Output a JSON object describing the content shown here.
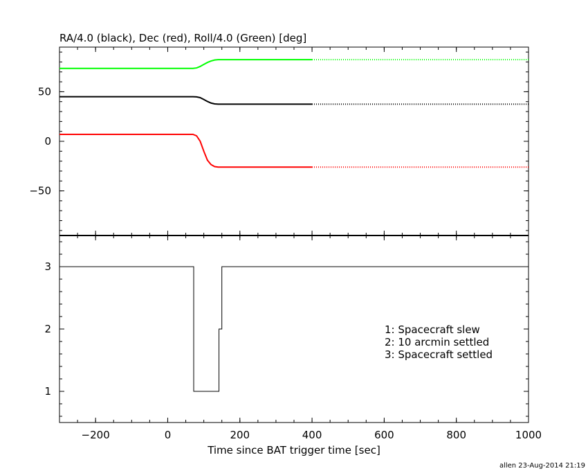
{
  "footer": "allen 23-Aug-2014 21:19",
  "chart_data": [
    {
      "type": "line",
      "title": "RA/4.0 (black), Dec (red), Roll/4.0 (Green) [deg]",
      "xlim": [
        -300,
        1000
      ],
      "ylim": [
        -95,
        95
      ],
      "yticks": [
        -50,
        0,
        50
      ],
      "ytick_labels": [
        "−50",
        "0",
        "50"
      ],
      "grid": false,
      "series": [
        {
          "name": "RA/4.0 (black)",
          "color": "#000000",
          "x": [
            -300,
            70,
            80,
            90,
            100,
            110,
            120,
            130,
            140,
            400
          ],
          "y": [
            45,
            45,
            44.8,
            44,
            42.2,
            40.2,
            38.6,
            37.7,
            37.5,
            37.5
          ],
          "dotted_after": 400
        },
        {
          "name": "Dec (red)",
          "color": "#ff0000",
          "x": [
            -300,
            70,
            80,
            90,
            100,
            110,
            120,
            130,
            140,
            150,
            400
          ],
          "y": [
            7,
            7,
            5.5,
            0,
            -10,
            -19,
            -23.5,
            -25.5,
            -26,
            -26,
            -26
          ],
          "dotted_after": 400
        },
        {
          "name": "Roll/4.0 (Green)",
          "color": "#00ff00",
          "x": [
            -300,
            70,
            80,
            90,
            100,
            110,
            120,
            130,
            140,
            400
          ],
          "y": [
            73.5,
            73.5,
            74,
            75.5,
            77.5,
            79.5,
            81,
            82,
            82.3,
            82.3
          ],
          "dotted_after": 400
        }
      ]
    },
    {
      "type": "line",
      "xlabel": "Time since BAT trigger time [sec]",
      "xlim": [
        -300,
        1000
      ],
      "ylim": [
        0.5,
        3.5
      ],
      "xticks": [
        -200,
        0,
        200,
        400,
        600,
        800,
        1000
      ],
      "xtick_labels": [
        "−200",
        "0",
        "200",
        "400",
        "600",
        "800",
        "1000"
      ],
      "yticks": [
        1,
        2,
        3
      ],
      "ytick_labels": [
        "1",
        "2",
        "3"
      ],
      "grid": false,
      "series": [
        {
          "color": "#000000",
          "step": true,
          "x": [
            -300,
            72,
            72,
            142,
            142,
            150,
            150,
            1000
          ],
          "y": [
            3,
            3,
            1,
            1,
            2,
            2,
            3,
            3
          ]
        }
      ],
      "legend_lines": [
        "1: Spacecraft slew",
        "2: 10 arcmin settled",
        "3: Spacecraft settled"
      ],
      "legend_position": "center-right"
    }
  ]
}
